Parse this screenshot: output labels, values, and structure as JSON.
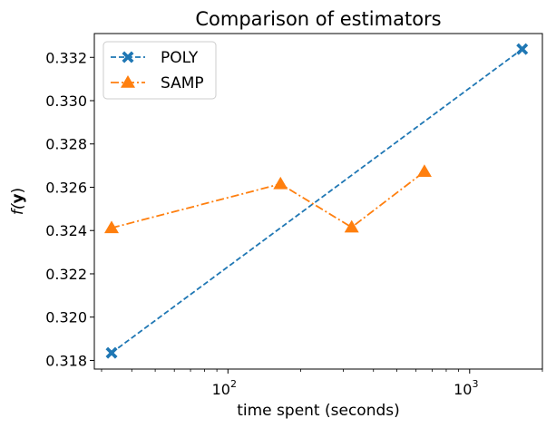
{
  "chart_data": {
    "type": "line",
    "title": "Comparison of estimators",
    "xlabel": "time spent (seconds)",
    "ylabel_main": "f(",
    "ylabel_bold": "y",
    "ylabel_end": ")",
    "xscale": "log",
    "xlim": [
      28,
      2000
    ],
    "ylim": [
      0.3176,
      0.3331
    ],
    "xticks": [
      {
        "value": 100,
        "base": "10",
        "exp": "2"
      },
      {
        "value": 1000,
        "base": "10",
        "exp": "3"
      }
    ],
    "yticks": [
      0.318,
      0.32,
      0.322,
      0.324,
      0.326,
      0.328,
      0.33,
      0.332
    ],
    "ytick_labels": [
      "0.318",
      "0.320",
      "0.322",
      "0.324",
      "0.326",
      "0.328",
      "0.330",
      "0.332"
    ],
    "legend_position": "top-left",
    "series": [
      {
        "name": "POLY",
        "color": "#1f77b4",
        "marker": "X",
        "linestyle": "dashed",
        "x": [
          33,
          1650
        ],
        "y": [
          0.31835,
          0.33238
        ]
      },
      {
        "name": "SAMP",
        "color": "#ff7f0e",
        "marker": "triangle",
        "linestyle": "dashdot",
        "x": [
          33,
          165,
          325,
          650
        ],
        "y": [
          0.32412,
          0.32615,
          0.32415,
          0.32672
        ]
      }
    ]
  }
}
